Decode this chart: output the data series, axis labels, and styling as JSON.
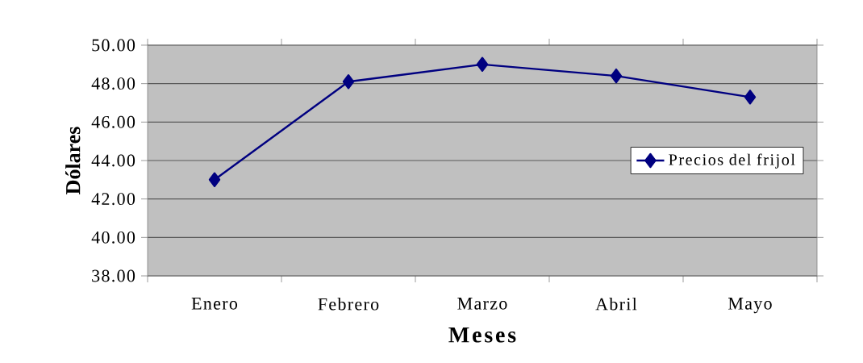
{
  "chart_data": {
    "type": "line",
    "xlabel": "Meses",
    "ylabel": "Dólares",
    "categories": [
      "Enero",
      "Febrero",
      "Marzo",
      "Abril",
      "Mayo"
    ],
    "series": [
      {
        "name": "Precios del frijol",
        "color": "#000080",
        "values": [
          43.0,
          48.1,
          49.0,
          48.4,
          47.3
        ]
      }
    ],
    "ylim": [
      38,
      50
    ],
    "yticks": [
      {
        "value": 38,
        "label": "38.00"
      },
      {
        "value": 40,
        "label": "40.00"
      },
      {
        "value": 42,
        "label": "42.00"
      },
      {
        "value": 44,
        "label": "44.00"
      },
      {
        "value": 46,
        "label": "46.00"
      },
      {
        "value": 48,
        "label": "48.00"
      },
      {
        "value": 50,
        "label": "50.00"
      }
    ],
    "grid": "y",
    "legend": "right",
    "marker": "diamond",
    "line_style": "solid"
  }
}
